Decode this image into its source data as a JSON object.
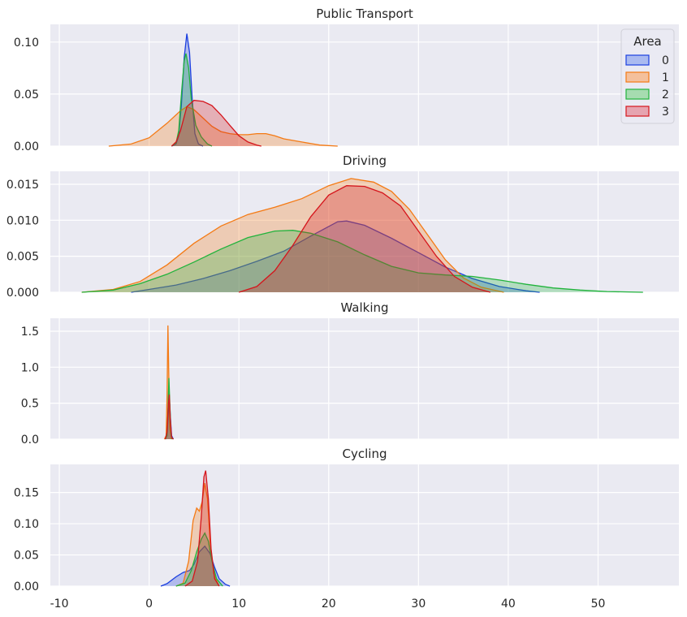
{
  "chart_data": {
    "type": "area",
    "kind": "kde",
    "shared_x": true,
    "xlim": [
      -11,
      59
    ],
    "x_ticks": [
      "-10",
      "0",
      "10",
      "20",
      "30",
      "40",
      "50"
    ],
    "legend": {
      "title": "Area",
      "placement": "top-right",
      "entries": [
        "0",
        "1",
        "2",
        "3"
      ]
    },
    "colors": {
      "0": "#1b3fe0",
      "1": "#f47a14",
      "2": "#21b33c",
      "3": "#d5151c"
    },
    "fill_colors": {
      "0": "#aabaf0",
      "1": "#f4c09c",
      "2": "#a6dcb0",
      "3": "#e6a4b0"
    },
    "background": "#eaeaf2",
    "grid": true,
    "panels": [
      {
        "title": "Public Transport",
        "ylim": [
          0,
          0.117
        ],
        "y_ticks": [
          {
            "v": 0,
            "label": "0.00"
          },
          {
            "v": 0.05,
            "label": "0.05"
          },
          {
            "v": 0.1,
            "label": "0.10"
          }
        ],
        "series": [
          {
            "name": "0",
            "points": [
              [
                2.5,
                0
              ],
              [
                3,
                0.002
              ],
              [
                3.3,
                0.01
              ],
              [
                3.6,
                0.04
              ],
              [
                3.9,
                0.085
              ],
              [
                4.2,
                0.108
              ],
              [
                4.5,
                0.09
              ],
              [
                4.8,
                0.045
              ],
              [
                5.1,
                0.012
              ],
              [
                5.5,
                0.002
              ],
              [
                6,
                0
              ]
            ]
          },
          {
            "name": "1",
            "points": [
              [
                -4.5,
                0
              ],
              [
                -2,
                0.002
              ],
              [
                0,
                0.008
              ],
              [
                2,
                0.022
              ],
              [
                3.5,
                0.034
              ],
              [
                4.2,
                0.038
              ],
              [
                5,
                0.035
              ],
              [
                6,
                0.027
              ],
              [
                7,
                0.019
              ],
              [
                8,
                0.014
              ],
              [
                9,
                0.012
              ],
              [
                10,
                0.011
              ],
              [
                11,
                0.011
              ],
              [
                12,
                0.012
              ],
              [
                13,
                0.012
              ],
              [
                14,
                0.01
              ],
              [
                15,
                0.007
              ],
              [
                17,
                0.004
              ],
              [
                19,
                0.001
              ],
              [
                21,
                0
              ]
            ]
          },
          {
            "name": "2",
            "points": [
              [
                2.5,
                0
              ],
              [
                3,
                0.003
              ],
              [
                3.3,
                0.015
              ],
              [
                3.6,
                0.05
              ],
              [
                3.9,
                0.082
              ],
              [
                4.1,
                0.089
              ],
              [
                4.4,
                0.075
              ],
              [
                4.7,
                0.045
              ],
              [
                5.2,
                0.02
              ],
              [
                5.8,
                0.009
              ],
              [
                6.5,
                0.002
              ],
              [
                7,
                0
              ]
            ]
          },
          {
            "name": "3",
            "points": [
              [
                2.5,
                0
              ],
              [
                3,
                0.004
              ],
              [
                3.5,
                0.015
              ],
              [
                4.2,
                0.038
              ],
              [
                5,
                0.044
              ],
              [
                6,
                0.043
              ],
              [
                7,
                0.039
              ],
              [
                8,
                0.03
              ],
              [
                9,
                0.02
              ],
              [
                10,
                0.01
              ],
              [
                11,
                0.004
              ],
              [
                12,
                0.001
              ],
              [
                12.5,
                0
              ]
            ]
          }
        ]
      },
      {
        "title": "Driving",
        "ylim": [
          0,
          0.0168
        ],
        "y_ticks": [
          {
            "v": 0,
            "label": "0.000"
          },
          {
            "v": 0.005,
            "label": "0.005"
          },
          {
            "v": 0.01,
            "label": "0.010"
          },
          {
            "v": 0.015,
            "label": "0.015"
          }
        ],
        "series": [
          {
            "name": "0",
            "points": [
              [
                -2,
                0
              ],
              [
                0,
                0.0004
              ],
              [
                3,
                0.001
              ],
              [
                6,
                0.0019
              ],
              [
                9,
                0.003
              ],
              [
                12,
                0.0043
              ],
              [
                15,
                0.0057
              ],
              [
                18,
                0.0078
              ],
              [
                21,
                0.0098
              ],
              [
                22,
                0.0099
              ],
              [
                24,
                0.0093
              ],
              [
                27,
                0.0075
              ],
              [
                30,
                0.0055
              ],
              [
                33,
                0.0035
              ],
              [
                36,
                0.0019
              ],
              [
                39,
                0.0008
              ],
              [
                42,
                0.0002
              ],
              [
                43.5,
                0
              ]
            ]
          },
          {
            "name": "1",
            "points": [
              [
                -7.5,
                0
              ],
              [
                -4,
                0.0004
              ],
              [
                -1,
                0.0015
              ],
              [
                2,
                0.0038
              ],
              [
                5,
                0.0068
              ],
              [
                8,
                0.0092
              ],
              [
                11,
                0.0108
              ],
              [
                14,
                0.0118
              ],
              [
                17,
                0.013
              ],
              [
                20,
                0.0148
              ],
              [
                22.5,
                0.0158
              ],
              [
                25,
                0.0153
              ],
              [
                27,
                0.014
              ],
              [
                29,
                0.0115
              ],
              [
                31,
                0.008
              ],
              [
                33,
                0.0045
              ],
              [
                35,
                0.002
              ],
              [
                37,
                0.0007
              ],
              [
                39.5,
                0
              ]
            ]
          },
          {
            "name": "2",
            "points": [
              [
                -7.5,
                0
              ],
              [
                -4,
                0.0003
              ],
              [
                -1,
                0.0012
              ],
              [
                2,
                0.0025
              ],
              [
                5,
                0.0042
              ],
              [
                8,
                0.006
              ],
              [
                11,
                0.0076
              ],
              [
                14,
                0.0085
              ],
              [
                16,
                0.0086
              ],
              [
                18,
                0.0082
              ],
              [
                21,
                0.007
              ],
              [
                24,
                0.0052
              ],
              [
                27,
                0.0036
              ],
              [
                30,
                0.0027
              ],
              [
                33,
                0.0024
              ],
              [
                36,
                0.0022
              ],
              [
                39,
                0.0017
              ],
              [
                42,
                0.0011
              ],
              [
                45,
                0.0006
              ],
              [
                48,
                0.0003
              ],
              [
                51,
                0.0001
              ],
              [
                55,
                0
              ]
            ]
          },
          {
            "name": "3",
            "points": [
              [
                10,
                0
              ],
              [
                12,
                0.0008
              ],
              [
                14,
                0.003
              ],
              [
                16,
                0.0065
              ],
              [
                18,
                0.0105
              ],
              [
                20,
                0.0135
              ],
              [
                22,
                0.0148
              ],
              [
                24,
                0.0147
              ],
              [
                26,
                0.0138
              ],
              [
                28,
                0.012
              ],
              [
                30,
                0.0085
              ],
              [
                32,
                0.005
              ],
              [
                34,
                0.0022
              ],
              [
                36,
                0.0007
              ],
              [
                38,
                0
              ]
            ]
          }
        ]
      },
      {
        "title": "Walking",
        "ylim": [
          0,
          1.68
        ],
        "y_ticks": [
          {
            "v": 0,
            "label": "0.0"
          },
          {
            "v": 0.5,
            "label": "0.5"
          },
          {
            "v": 1.0,
            "label": "1.0"
          },
          {
            "v": 1.5,
            "label": "1.5"
          }
        ],
        "series": [
          {
            "name": "0",
            "points": [
              [
                1.8,
                0
              ],
              [
                2.0,
                0.05
              ],
              [
                2.15,
                0.4
              ],
              [
                2.25,
                0.6
              ],
              [
                2.35,
                0.35
              ],
              [
                2.5,
                0.05
              ],
              [
                2.7,
                0
              ]
            ]
          },
          {
            "name": "1",
            "points": [
              [
                1.7,
                0
              ],
              [
                1.9,
                0.05
              ],
              [
                2.0,
                0.6
              ],
              [
                2.1,
                1.58
              ],
              [
                2.2,
                0.8
              ],
              [
                2.3,
                0.15
              ],
              [
                2.5,
                0
              ]
            ]
          },
          {
            "name": "2",
            "points": [
              [
                1.8,
                0
              ],
              [
                2.0,
                0.05
              ],
              [
                2.1,
                0.4
              ],
              [
                2.2,
                0.85
              ],
              [
                2.3,
                0.5
              ],
              [
                2.45,
                0.05
              ],
              [
                2.6,
                0
              ]
            ]
          },
          {
            "name": "3",
            "points": [
              [
                1.8,
                0
              ],
              [
                2.0,
                0.1
              ],
              [
                2.15,
                0.5
              ],
              [
                2.25,
                0.62
              ],
              [
                2.35,
                0.3
              ],
              [
                2.5,
                0.03
              ],
              [
                2.7,
                0
              ]
            ]
          }
        ]
      },
      {
        "title": "Cycling",
        "ylim": [
          0,
          0.195
        ],
        "y_ticks": [
          {
            "v": 0,
            "label": "0.00"
          },
          {
            "v": 0.05,
            "label": "0.05"
          },
          {
            "v": 0.1,
            "label": "0.10"
          },
          {
            "v": 0.15,
            "label": "0.15"
          }
        ],
        "series": [
          {
            "name": "0",
            "points": [
              [
                1.3,
                0
              ],
              [
                2,
                0.004
              ],
              [
                3,
                0.015
              ],
              [
                3.8,
                0.022
              ],
              [
                4.5,
                0.025
              ],
              [
                5,
                0.035
              ],
              [
                5.6,
                0.055
              ],
              [
                6.2,
                0.064
              ],
              [
                6.8,
                0.052
              ],
              [
                7.3,
                0.03
              ],
              [
                7.8,
                0.012
              ],
              [
                8.5,
                0.003
              ],
              [
                9,
                0
              ]
            ]
          },
          {
            "name": "1",
            "points": [
              [
                3,
                0
              ],
              [
                3.8,
                0.005
              ],
              [
                4.4,
                0.04
              ],
              [
                4.9,
                0.105
              ],
              [
                5.3,
                0.125
              ],
              [
                5.6,
                0.12
              ],
              [
                5.9,
                0.135
              ],
              [
                6.2,
                0.165
              ],
              [
                6.5,
                0.14
              ],
              [
                6.8,
                0.07
              ],
              [
                7.2,
                0.02
              ],
              [
                7.8,
                0
              ]
            ]
          },
          {
            "name": "2",
            "points": [
              [
                3,
                0
              ],
              [
                4,
                0.005
              ],
              [
                4.7,
                0.025
              ],
              [
                5.3,
                0.055
              ],
              [
                5.8,
                0.075
              ],
              [
                6.2,
                0.085
              ],
              [
                6.6,
                0.072
              ],
              [
                7,
                0.04
              ],
              [
                7.5,
                0.012
              ],
              [
                8.2,
                0
              ]
            ]
          },
          {
            "name": "3",
            "points": [
              [
                4,
                0
              ],
              [
                4.8,
                0.008
              ],
              [
                5.4,
                0.04
              ],
              [
                5.8,
                0.11
              ],
              [
                6.1,
                0.175
              ],
              [
                6.3,
                0.185
              ],
              [
                6.6,
                0.14
              ],
              [
                6.9,
                0.06
              ],
              [
                7.3,
                0.012
              ],
              [
                7.8,
                0
              ]
            ]
          }
        ]
      }
    ]
  }
}
